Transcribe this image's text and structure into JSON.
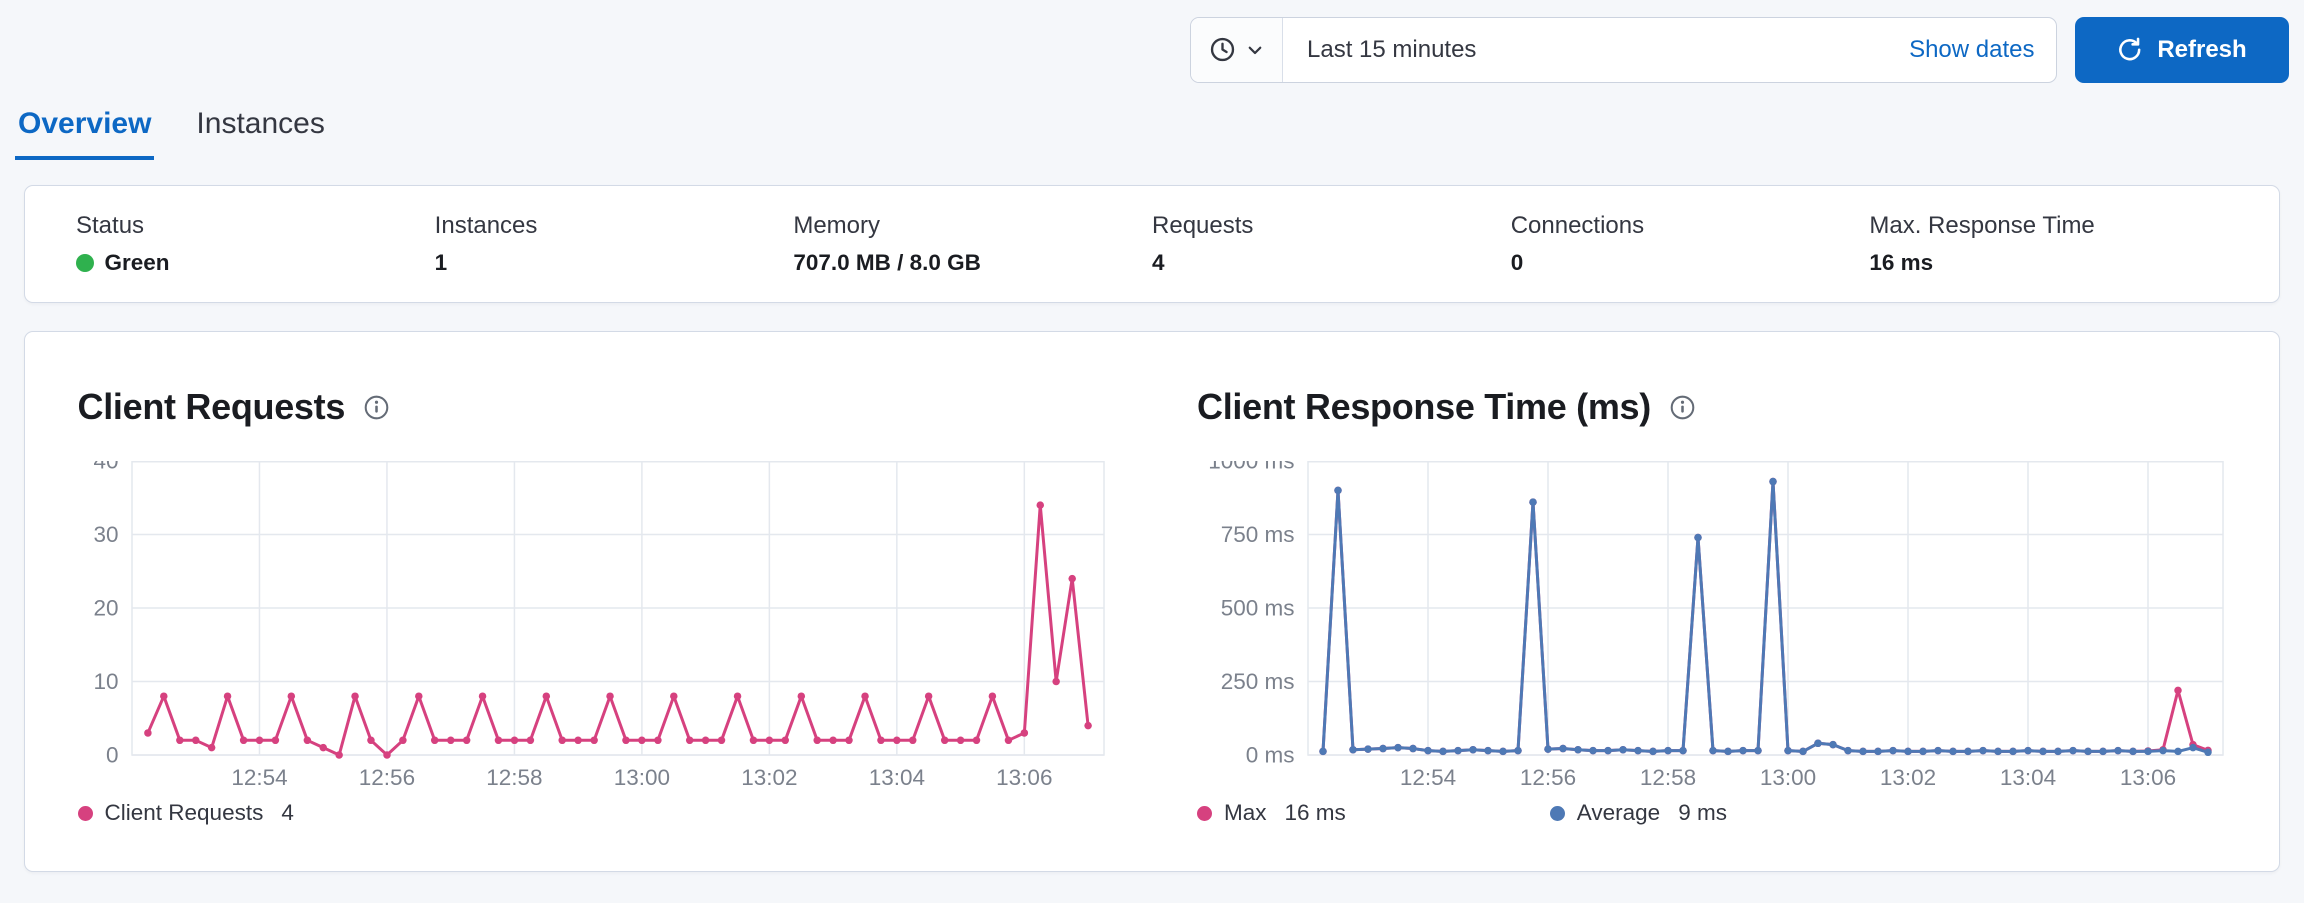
{
  "header": {
    "time_picker": {
      "selected": "Last 15 minutes",
      "show_dates_label": "Show dates"
    },
    "refresh_label": "Refresh"
  },
  "tabs": [
    {
      "label": "Overview",
      "active": true
    },
    {
      "label": "Instances",
      "active": false
    }
  ],
  "stats": [
    {
      "label": "Status",
      "value": "Green",
      "health_color": "#2fb14e"
    },
    {
      "label": "Instances",
      "value": "1"
    },
    {
      "label": "Memory",
      "value": "707.0 MB / 8.0 GB"
    },
    {
      "label": "Requests",
      "value": "4"
    },
    {
      "label": "Connections",
      "value": "0"
    },
    {
      "label": "Max. Response Time",
      "value": "16 ms"
    }
  ],
  "colors": {
    "primary": "#0d68c4",
    "pink": "#d6417f",
    "blue": "#4e79b5",
    "grid": "#e4e8ee",
    "axis_text": "#7b818c",
    "health_green": "#2fb14e"
  },
  "chart_data": [
    {
      "type": "line",
      "title": "Client Requests",
      "xlabel": "",
      "ylabel": "",
      "x_interval_seconds": 15,
      "xlim": [
        0,
        61
      ],
      "ylim": [
        0,
        40
      ],
      "x_ticks": [
        {
          "v": 8,
          "label": "12:54"
        },
        {
          "v": 16,
          "label": "12:56"
        },
        {
          "v": 24,
          "label": "12:58"
        },
        {
          "v": 32,
          "label": "13:00"
        },
        {
          "v": 40,
          "label": "13:02"
        },
        {
          "v": 48,
          "label": "13:04"
        },
        {
          "v": 56,
          "label": "13:06"
        }
      ],
      "y_ticks": [
        {
          "v": 0,
          "label": "0"
        },
        {
          "v": 10,
          "label": "10"
        },
        {
          "v": 20,
          "label": "20"
        },
        {
          "v": 30,
          "label": "30"
        },
        {
          "v": 40,
          "label": "40"
        }
      ],
      "series": [
        {
          "name": "Client Requests",
          "color": "#d6417f",
          "values": [
            3,
            8,
            2,
            2,
            1,
            8,
            2,
            2,
            2,
            8,
            2,
            1,
            0,
            8,
            2,
            0,
            2,
            8,
            2,
            2,
            2,
            8,
            2,
            2,
            2,
            8,
            2,
            2,
            2,
            8,
            2,
            2,
            2,
            8,
            2,
            2,
            2,
            8,
            2,
            2,
            2,
            8,
            2,
            2,
            2,
            8,
            2,
            2,
            2,
            8,
            2,
            2,
            2,
            8,
            2,
            3,
            34,
            10,
            24,
            4
          ]
        }
      ],
      "legend": [
        {
          "label": "Client Requests",
          "value": "4",
          "color": "#d6417f"
        }
      ],
      "layout": {
        "y_gutter": 36,
        "grid": true,
        "legend_position": "bottom"
      }
    },
    {
      "type": "line",
      "title": "Client Response Time (ms)",
      "xlabel": "",
      "ylabel": "",
      "x_interval_seconds": 15,
      "xlim": [
        0,
        61
      ],
      "ylim": [
        0,
        1000
      ],
      "x_ticks": [
        {
          "v": 8,
          "label": "12:54"
        },
        {
          "v": 16,
          "label": "12:56"
        },
        {
          "v": 24,
          "label": "12:58"
        },
        {
          "v": 32,
          "label": "13:00"
        },
        {
          "v": 40,
          "label": "13:02"
        },
        {
          "v": 48,
          "label": "13:04"
        },
        {
          "v": 56,
          "label": "13:06"
        }
      ],
      "y_ticks": [
        {
          "v": 0,
          "label": "0 ms"
        },
        {
          "v": 250,
          "label": "250 ms"
        },
        {
          "v": 500,
          "label": "500 ms"
        },
        {
          "v": 750,
          "label": "750 ms"
        },
        {
          "v": 1000,
          "label": "1000 ms"
        }
      ],
      "series": [
        {
          "name": "Max",
          "color": "#d6417f",
          "values": [
            12,
            900,
            18,
            20,
            22,
            25,
            22,
            15,
            12,
            15,
            18,
            15,
            12,
            15,
            860,
            20,
            22,
            18,
            15,
            15,
            18,
            15,
            12,
            15,
            15,
            740,
            15,
            12,
            15,
            15,
            930,
            15,
            12,
            40,
            35,
            15,
            12,
            12,
            15,
            12,
            12,
            15,
            12,
            12,
            15,
            12,
            12,
            15,
            12,
            12,
            15,
            12,
            12,
            15,
            12,
            14,
            18,
            220,
            35,
            16
          ]
        },
        {
          "name": "Average",
          "color": "#4e79b5",
          "values": [
            12,
            900,
            18,
            20,
            22,
            25,
            22,
            15,
            12,
            15,
            18,
            15,
            12,
            15,
            860,
            20,
            22,
            18,
            15,
            15,
            18,
            15,
            12,
            15,
            15,
            740,
            15,
            12,
            15,
            15,
            930,
            15,
            12,
            40,
            35,
            15,
            12,
            12,
            15,
            12,
            12,
            15,
            12,
            12,
            15,
            12,
            12,
            15,
            12,
            12,
            15,
            12,
            12,
            15,
            12,
            12,
            15,
            12,
            25,
            9
          ]
        }
      ],
      "legend": [
        {
          "label": "Max",
          "value": "16 ms",
          "color": "#d6417f"
        },
        {
          "label": "Average",
          "value": "9 ms",
          "color": "#4e79b5"
        }
      ],
      "layout": {
        "y_gutter": 74,
        "grid": true,
        "legend_position": "bottom"
      }
    }
  ]
}
